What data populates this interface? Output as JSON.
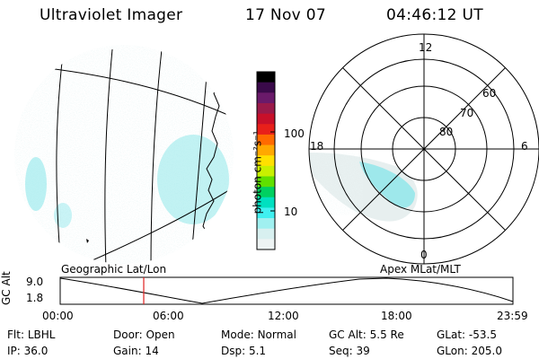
{
  "header": {
    "instrument": "Ultraviolet Imager",
    "date": "17 Nov 07",
    "time": "04:46:12 UT"
  },
  "colorbar": {
    "unit_label": "photon cm⁻²s⁻¹",
    "ticks": [
      "100",
      "10"
    ],
    "colors": [
      "#000000",
      "#3a0a4a",
      "#6a1a6a",
      "#9a1a4a",
      "#c8102a",
      "#e8201a",
      "#ff6a00",
      "#ffa800",
      "#ffe000",
      "#c8f000",
      "#60e000",
      "#00d060",
      "#00e0c0",
      "#40f0f0",
      "#a0f0f0",
      "#d8f0f0",
      "#eef4f4"
    ]
  },
  "geo_panel": {
    "caption": "Geographic Lat/Lon"
  },
  "polar_panel": {
    "caption": "Apex MLat/MLT",
    "mlt_labels": {
      "top": "12",
      "left": "18",
      "right": "6",
      "bottom": "0"
    },
    "lat_labels": [
      "60",
      "70",
      "80"
    ]
  },
  "altitude_plot": {
    "ylabel": "GC Alt",
    "yticks": [
      "9.0",
      "1.8"
    ],
    "xticks": [
      "00:00",
      "06:00",
      "12:00",
      "18:00",
      "23:59"
    ],
    "marker_color": "#e02020"
  },
  "info": {
    "row1": [
      {
        "label": "Flt:",
        "value": "LBHL"
      },
      {
        "label": "Door:",
        "value": "Open"
      },
      {
        "label": "Mode:",
        "value": "Normal"
      },
      {
        "label": "GC Alt:",
        "value": "5.5 Re"
      },
      {
        "label": "GLat:",
        "value": "-53.5"
      }
    ],
    "row2": [
      {
        "label": "IP:",
        "value": "36.0"
      },
      {
        "label": "Gain:",
        "value": "14"
      },
      {
        "label": "Dsp:",
        "value": "5.1"
      },
      {
        "label": "Seq:",
        "value": "39"
      },
      {
        "label": "GLon:",
        "value": "205.0"
      }
    ]
  }
}
